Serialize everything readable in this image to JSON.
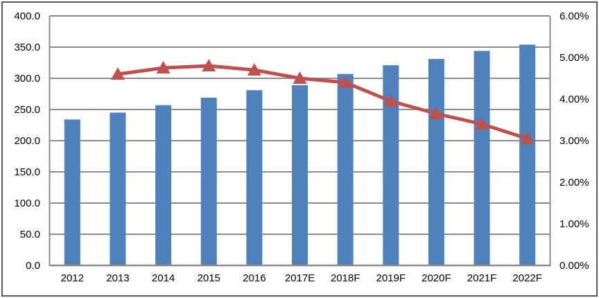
{
  "chart_data": {
    "type": "bar-line-combo",
    "title": "",
    "xlabel": "",
    "ylabel": "",
    "grid": true,
    "legend": false,
    "categories": [
      "2012",
      "2013",
      "2014",
      "2015",
      "2016",
      "2017E",
      "2018F",
      "2019F",
      "2020F",
      "2021F",
      "2022F"
    ],
    "series": [
      {
        "name": "value-bars",
        "type": "bar",
        "axis": "left",
        "color": "#4F81BD",
        "values": [
          234,
          245,
          257,
          269,
          281,
          289,
          307,
          321,
          331,
          344,
          354
        ]
      },
      {
        "name": "growth-rate-line",
        "type": "line",
        "axis": "right",
        "marker": "triangle",
        "color": "#C0504D",
        "values": [
          null,
          4.6,
          4.75,
          4.8,
          4.7,
          4.5,
          4.4,
          3.95,
          3.65,
          3.4,
          3.05
        ]
      }
    ],
    "left_axis": {
      "min": 0,
      "max": 400,
      "step": 50,
      "tick_labels": [
        "400.0",
        "350.0",
        "300.0",
        "250.0",
        "200.0",
        "150.0",
        "100.0",
        "50.0",
        "0.0"
      ]
    },
    "right_axis": {
      "min": 0,
      "max": 6,
      "step": 1,
      "tick_labels": [
        "6.00%",
        "5.00%",
        "4.00%",
        "3.00%",
        "2.00%",
        "1.00%",
        "0.00%"
      ]
    }
  },
  "colors": {
    "bar": "#4F81BD",
    "line": "#C0504D",
    "grid": "#8C8C8C",
    "axis": "#8C8C8C",
    "text": "#000000",
    "background": "#FFFFFF",
    "frame_border": "#595959"
  }
}
